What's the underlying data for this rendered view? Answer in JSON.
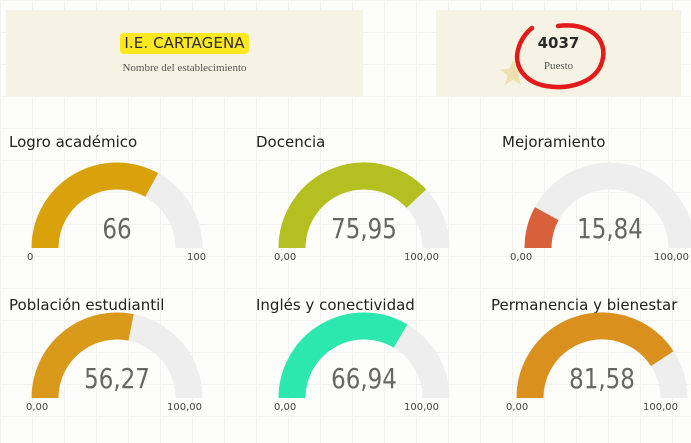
{
  "school": {
    "name": "I.E. CARTAGENA",
    "caption": "Nombre del establecimiento"
  },
  "rank": {
    "value": "4037",
    "caption": "Puesto",
    "annotation_color": "#e21a1a"
  },
  "icons": {
    "decoration": "star-icon"
  },
  "colors": {
    "track": "#eeeeee"
  },
  "gauges": [
    {
      "title": "Logro académico",
      "value": 66,
      "value_text": "66",
      "min": 0,
      "max": 100,
      "min_label": "0",
      "max_label": "100",
      "color": "#d9a20b"
    },
    {
      "title": "Docencia",
      "value": 75.95,
      "value_text": "75,95",
      "min": 0,
      "max": 100,
      "min_label": "0,00",
      "max_label": "100,00",
      "color": "#b3c020"
    },
    {
      "title": "Mejoramiento",
      "value": 15.84,
      "value_text": "15,84",
      "min": 0,
      "max": 100,
      "min_label": "0,00",
      "max_label": "100,00",
      "color": "#d8613c"
    },
    {
      "title": "Población estudiantil",
      "value": 56.27,
      "value_text": "56,27",
      "min": 0,
      "max": 100,
      "min_label": "0,00",
      "max_label": "100,00",
      "color": "#d99a1c"
    },
    {
      "title": "Inglés y conectividad",
      "value": 66.94,
      "value_text": "66,94",
      "min": 0,
      "max": 100,
      "min_label": "0,00",
      "max_label": "100,00",
      "color": "#2de8ae"
    },
    {
      "title": "Permanencia y bienestar",
      "value": 81.58,
      "value_text": "81,58",
      "min": 0,
      "max": 100,
      "min_label": "0,00",
      "max_label": "100,00",
      "color": "#d9901c"
    }
  ]
}
